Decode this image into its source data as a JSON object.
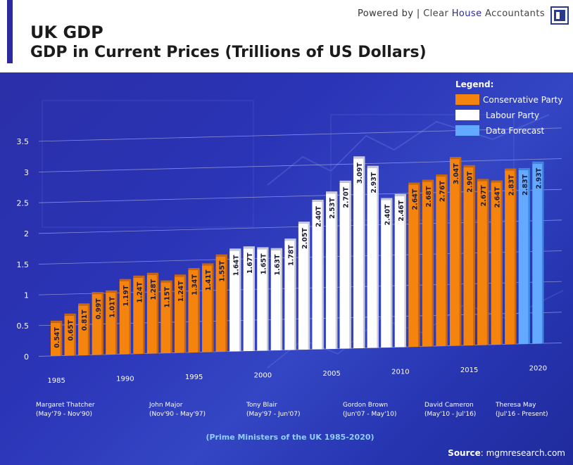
{
  "header": {
    "title_line1": "UK GDP",
    "title_line2": "GDP in Current Prices (Trillions of US Dollars)",
    "powered_prefix": "Powered by",
    "powered_brand_a": "Clear",
    "powered_brand_b": "House",
    "powered_brand_c": "Accountants"
  },
  "legend": {
    "title": "Legend:",
    "items": [
      {
        "label": "Conservative Party",
        "color": "#f5840f"
      },
      {
        "label": "Labour Party",
        "color": "#ffffff"
      },
      {
        "label": "Data Forecast",
        "color": "#62a9ff"
      }
    ]
  },
  "chart_data": {
    "type": "bar",
    "title": "GDP in Current Prices (Trillions of US Dollars)",
    "xlabel": "(Prime Ministers of  the UK 1985-2020)",
    "ylabel": "",
    "ylim": [
      0,
      3.5
    ],
    "yticks": [
      "0",
      "0.5",
      "1",
      "1.5",
      "2",
      "2.5",
      "3",
      "3.5"
    ],
    "categories": [
      1985,
      1986,
      1987,
      1988,
      1989,
      1990,
      1991,
      1992,
      1993,
      1994,
      1995,
      1996,
      1997,
      1998,
      1999,
      2000,
      2001,
      2002,
      2003,
      2004,
      2005,
      2006,
      2007,
      2008,
      2009,
      2010,
      2011,
      2012,
      2013,
      2014,
      2015,
      2016,
      2017,
      2018,
      2019,
      2020
    ],
    "values": [
      0.54,
      0.65,
      0.81,
      0.99,
      1.01,
      1.19,
      1.24,
      1.28,
      1.15,
      1.24,
      1.34,
      1.41,
      1.55,
      1.64,
      1.67,
      1.65,
      1.63,
      1.78,
      2.05,
      2.4,
      2.53,
      2.7,
      3.09,
      2.93,
      2.4,
      2.46,
      2.64,
      2.68,
      2.76,
      3.04,
      2.9,
      2.67,
      2.64,
      2.83,
      2.83,
      2.93
    ],
    "labels": [
      "0.54T",
      "0.65T",
      "0.81T",
      "0.99T",
      "1.01T",
      "1.19T",
      "1.24T",
      "1.28T",
      "1.15T",
      "1.24T",
      "1.34T",
      "1.41T",
      "1.55T",
      "1.64T",
      "1.67T",
      "1.65T",
      "1.63T",
      "1.78T",
      "2.05T",
      "2.40T",
      "2.53T",
      "2.70T",
      "3.09T",
      "2.93T",
      "2.40T",
      "2.46T",
      "2.64T",
      "2.68T",
      "2.76T",
      "3.04T",
      "2.90T",
      "2.67T",
      "2.64T",
      "2.83T",
      "2.83T",
      "2.93T"
    ],
    "party": [
      "C",
      "C",
      "C",
      "C",
      "C",
      "C",
      "C",
      "C",
      "C",
      "C",
      "C",
      "C",
      "C",
      "L",
      "L",
      "L",
      "L",
      "L",
      "L",
      "L",
      "L",
      "L",
      "L",
      "L",
      "L",
      "L",
      "C",
      "C",
      "C",
      "C",
      "C",
      "C",
      "C",
      "C",
      "F",
      "F"
    ],
    "xtick_labels": [
      "1985",
      "1990",
      "1995",
      "2000",
      "2005",
      "2010",
      "2015",
      "2020"
    ],
    "series_legend": [
      "Conservative Party",
      "Labour Party",
      "Data Forecast"
    ]
  },
  "prime_ministers": [
    {
      "name": "Margaret Thatcher",
      "term": "(May'79 - Nov'90)"
    },
    {
      "name": "John Major",
      "term": "(Nov'90 - May'97)"
    },
    {
      "name": "Tony Blair",
      "term": "(May'97 - Jun'07)"
    },
    {
      "name": "Gordon Brown",
      "term": "(Jun'07 - May'10)"
    },
    {
      "name": "David Cameron",
      "term": "(May'10 - Jul'16)"
    },
    {
      "name": "Theresa May",
      "term": "(Jul'16 - Present)"
    }
  ],
  "footer": {
    "pm_caption": "(Prime Ministers of  the UK 1985-2020)",
    "source_label": "Source",
    "source_value": ": mgmresearch.com"
  },
  "colors": {
    "conservative": "#f5840f",
    "labour": "#ffffff",
    "forecast": "#62a9ff",
    "panel": "#2b33ad",
    "caption": "#8fd0ff"
  }
}
